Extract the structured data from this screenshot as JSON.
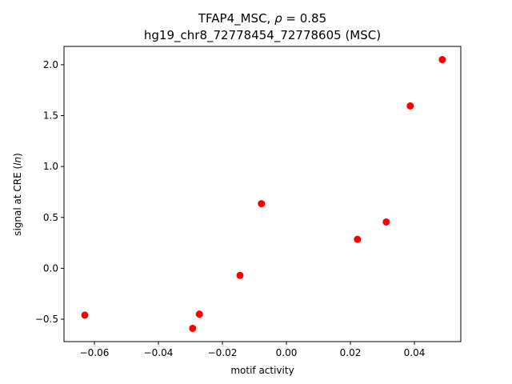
{
  "chart_data": {
    "type": "scatter",
    "title": "TFAP4_MSC, ρ = 0.85",
    "subtitle": "hg19_chr8_72778454_72778605 (MSC)",
    "xlabel": "motif activity",
    "ylabel": "signal at CRE (ln)",
    "xlim": [
      -0.0695,
      0.0545
    ],
    "ylim": [
      -0.72,
      2.18
    ],
    "xticks": [
      -0.06,
      -0.04,
      -0.02,
      0.0,
      0.02,
      0.04
    ],
    "xtick_labels": [
      "−0.06",
      "−0.04",
      "−0.02",
      "0.00",
      "0.02",
      "0.04"
    ],
    "yticks": [
      -0.5,
      0.0,
      0.5,
      1.0,
      1.5,
      2.0
    ],
    "ytick_labels": [
      "−0.5",
      "0.0",
      "0.5",
      "1.0",
      "1.5",
      "2.0"
    ],
    "grid": false,
    "marker_color": "#ff0000",
    "points": [
      {
        "x": -0.063,
        "y": -0.46
      },
      {
        "x": -0.0293,
        "y": -0.59
      },
      {
        "x": -0.0272,
        "y": -0.45
      },
      {
        "x": -0.0145,
        "y": -0.07
      },
      {
        "x": -0.0078,
        "y": 0.635
      },
      {
        "x": 0.0222,
        "y": 0.285
      },
      {
        "x": 0.0312,
        "y": 0.455
      },
      {
        "x": 0.0387,
        "y": 1.595
      },
      {
        "x": 0.0487,
        "y": 2.05
      }
    ]
  }
}
